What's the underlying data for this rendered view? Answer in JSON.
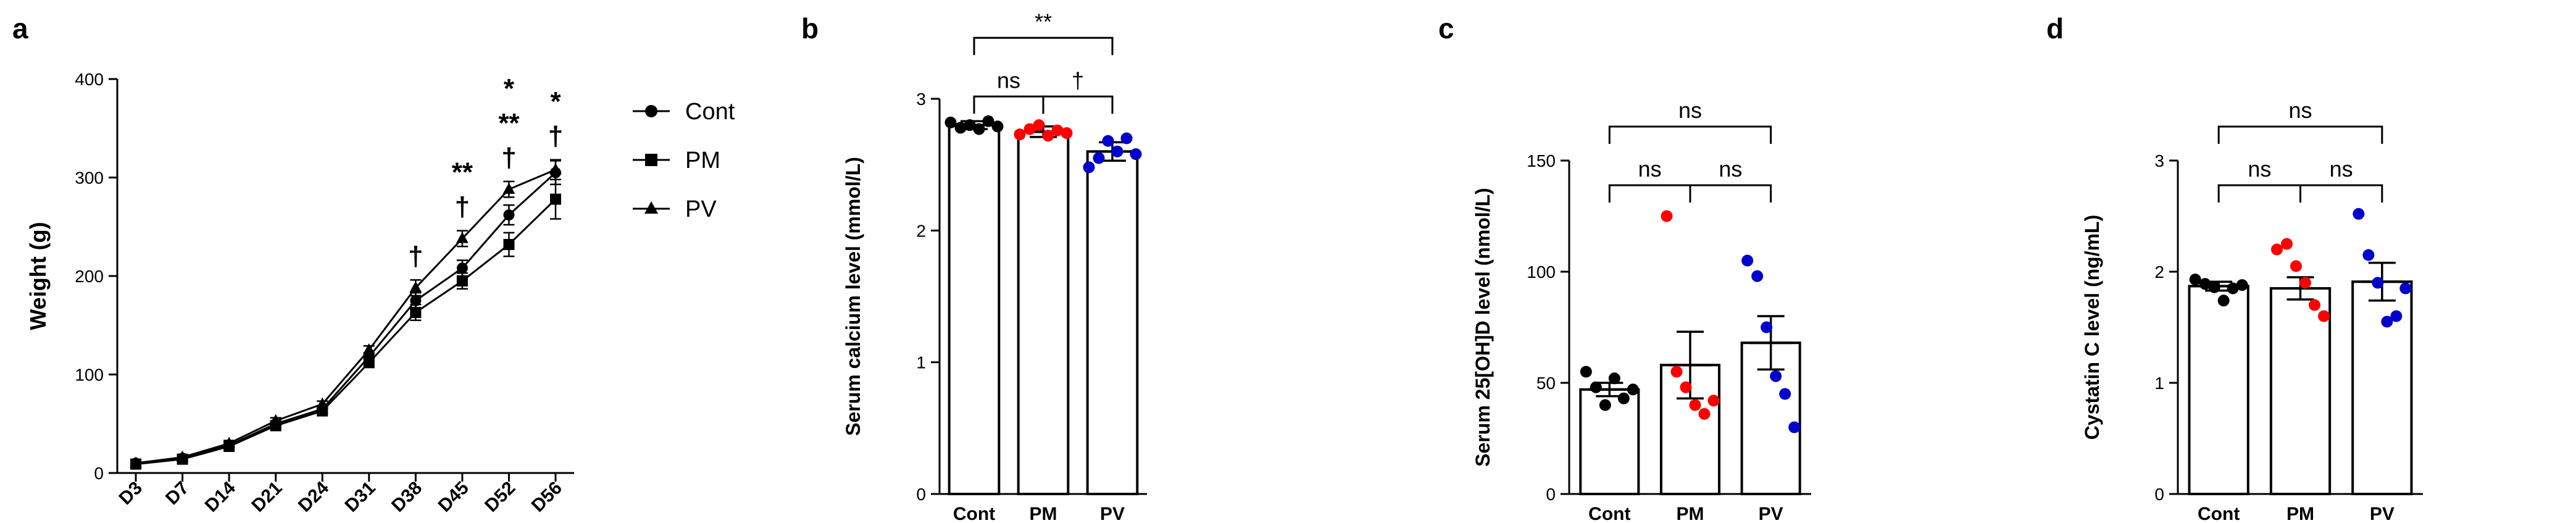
{
  "colors": {
    "axis": "#000000",
    "cont": "#000000",
    "pm": "#ff0000",
    "pv": "#0000cc",
    "line": "#000000"
  },
  "chart_data": [
    {
      "panel": "a",
      "type": "line",
      "xlabel": "",
      "ylabel": "Weight (g)",
      "categories": [
        "D3",
        "D7",
        "D14",
        "D21",
        "D24",
        "D31",
        "D38",
        "D45",
        "D52",
        "D56"
      ],
      "ylim": [
        0,
        400
      ],
      "yticks": [
        0,
        100,
        200,
        300,
        400
      ],
      "legend_position": "right",
      "series": [
        {
          "name": "Cont",
          "marker": "circle",
          "values": [
            10,
            15,
            28,
            50,
            65,
            118,
            175,
            208,
            262,
            305
          ],
          "err": [
            2,
            2,
            3,
            3,
            3,
            4,
            8,
            8,
            10,
            12
          ]
        },
        {
          "name": "PM",
          "marker": "square",
          "values": [
            9,
            14,
            27,
            48,
            63,
            112,
            163,
            195,
            232,
            278
          ],
          "err": [
            2,
            2,
            3,
            3,
            3,
            4,
            8,
            8,
            12,
            20
          ]
        },
        {
          "name": "PV",
          "marker": "triangle",
          "values": [
            10,
            16,
            30,
            53,
            70,
            125,
            188,
            238,
            288,
            308
          ],
          "err": [
            2,
            2,
            3,
            3,
            3,
            4,
            8,
            8,
            8,
            10
          ]
        }
      ],
      "annotations": [
        {
          "category": "D38",
          "lines": [
            "†"
          ]
        },
        {
          "category": "D45",
          "lines": [
            "**",
            "†"
          ]
        },
        {
          "category": "D52",
          "lines": [
            "*",
            "**",
            "†"
          ]
        },
        {
          "category": "D56",
          "lines": [
            "*",
            "†"
          ]
        }
      ]
    },
    {
      "panel": "b",
      "type": "bar",
      "ylabel": "Serum calcium level (mmol/L)",
      "categories": [
        "Cont",
        "PM",
        "PV"
      ],
      "ylim": [
        0,
        3
      ],
      "yticks": [
        0,
        1,
        2,
        3
      ],
      "values": [
        2.8,
        2.75,
        2.6
      ],
      "err": [
        0.03,
        0.04,
        0.07
      ],
      "points": [
        [
          2.82,
          2.78,
          2.8,
          2.77,
          2.83,
          2.79
        ],
        [
          2.73,
          2.77,
          2.8,
          2.72,
          2.76,
          2.74
        ],
        [
          2.48,
          2.55,
          2.68,
          2.6,
          2.7,
          2.58
        ]
      ],
      "comparisons": [
        {
          "from": 0,
          "to": 1,
          "label": "ns",
          "level": 1
        },
        {
          "from": 1,
          "to": 2,
          "label": "†",
          "level": 1
        },
        {
          "from": 0,
          "to": 2,
          "label": "**",
          "level": 2
        }
      ]
    },
    {
      "panel": "c",
      "type": "bar",
      "ylabel": "Serum 25[OH]D level (nmol/L)",
      "categories": [
        "Cont",
        "PM",
        "PV"
      ],
      "ylim": [
        0,
        150
      ],
      "yticks": [
        0,
        50,
        100,
        150
      ],
      "values": [
        47,
        58,
        68
      ],
      "err": [
        3,
        15,
        12
      ],
      "points": [
        [
          55,
          48,
          40,
          52,
          43,
          47
        ],
        [
          125,
          55,
          48,
          40,
          36,
          42
        ],
        [
          105,
          98,
          75,
          53,
          45,
          30
        ]
      ],
      "comparisons": [
        {
          "from": 0,
          "to": 1,
          "label": "ns",
          "level": 1
        },
        {
          "from": 1,
          "to": 2,
          "label": "ns",
          "level": 1
        },
        {
          "from": 0,
          "to": 2,
          "label": "ns",
          "level": 2
        }
      ]
    },
    {
      "panel": "d",
      "type": "bar",
      "ylabel": "Cystatin C level (ng/mL)",
      "categories": [
        "Cont",
        "PM",
        "PV"
      ],
      "ylim": [
        0,
        3
      ],
      "yticks": [
        0,
        1,
        2,
        3
      ],
      "values": [
        1.87,
        1.85,
        1.91
      ],
      "err": [
        0.04,
        0.1,
        0.17
      ],
      "points": [
        [
          1.93,
          1.89,
          1.86,
          1.74,
          1.85,
          1.88
        ],
        [
          2.2,
          2.25,
          2.05,
          1.9,
          1.7,
          1.6
        ],
        [
          2.52,
          2.15,
          1.9,
          1.55,
          1.6,
          1.85
        ]
      ],
      "comparisons": [
        {
          "from": 0,
          "to": 1,
          "label": "ns",
          "level": 1
        },
        {
          "from": 1,
          "to": 2,
          "label": "ns",
          "level": 1
        },
        {
          "from": 0,
          "to": 2,
          "label": "ns",
          "level": 2
        }
      ]
    }
  ]
}
